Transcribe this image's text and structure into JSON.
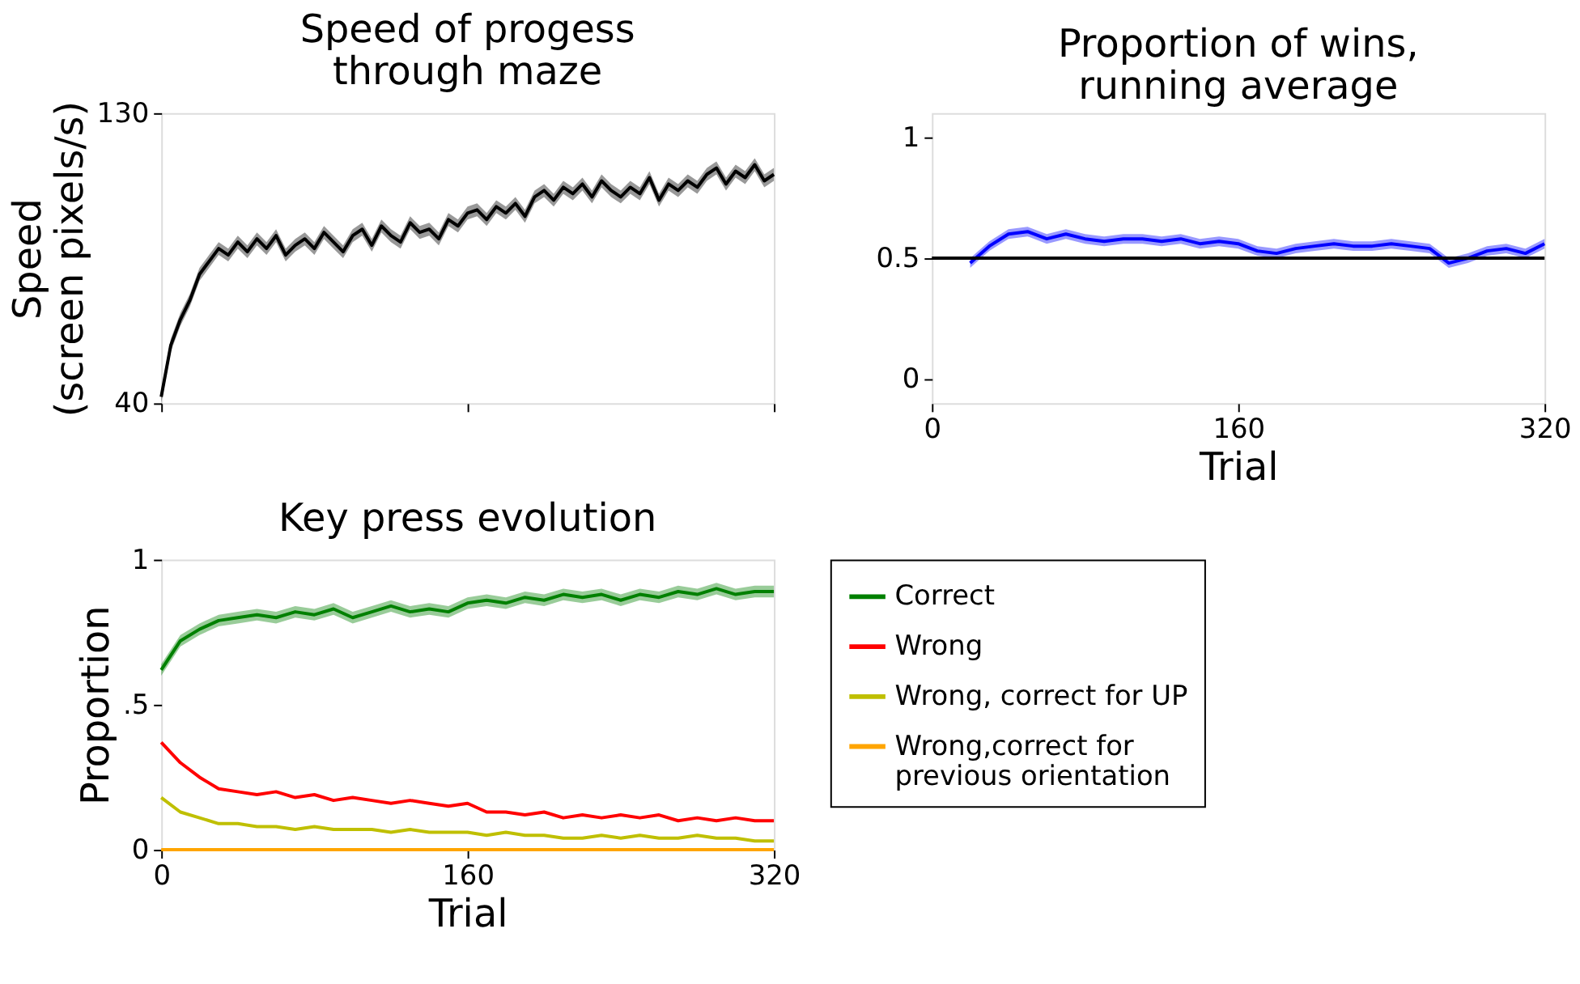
{
  "chart_data": [
    {
      "type": "line",
      "title": "Speed of progess\nthrough maze",
      "ylabel": "Speed\n(screen pixels/s)",
      "xlim": [
        0,
        320
      ],
      "ylim": [
        40,
        130
      ],
      "xticks": [
        {
          "value": 0,
          "label": null
        },
        {
          "value": 160,
          "label": null
        },
        {
          "value": 320,
          "label": null
        }
      ],
      "yticks": [
        40,
        130
      ],
      "tick_labels": "y",
      "grid": false,
      "legend": false,
      "x": [
        0,
        5,
        10,
        15,
        20,
        25,
        30,
        35,
        40,
        45,
        50,
        55,
        60,
        65,
        70,
        75,
        80,
        85,
        90,
        95,
        100,
        105,
        110,
        115,
        120,
        125,
        130,
        135,
        140,
        145,
        150,
        155,
        160,
        165,
        170,
        175,
        180,
        185,
        190,
        195,
        200,
        205,
        210,
        215,
        220,
        225,
        230,
        235,
        240,
        245,
        250,
        255,
        260,
        265,
        270,
        275,
        280,
        285,
        290,
        295,
        300,
        305,
        310,
        315,
        320
      ],
      "series": [
        {
          "color": "#000000",
          "values": [
            42,
            58,
            66,
            72,
            80,
            84,
            88,
            86,
            90,
            87,
            91,
            88,
            92,
            86,
            89,
            91,
            88,
            93,
            90,
            87,
            92,
            94,
            89,
            95,
            92,
            90,
            96,
            93,
            94,
            91,
            97,
            95,
            99,
            100,
            97,
            101,
            99,
            102,
            98,
            104,
            106,
            103,
            107,
            105,
            108,
            104,
            109,
            106,
            104,
            107,
            105,
            110,
            103,
            108,
            106,
            109,
            107,
            111,
            113,
            108,
            112,
            110,
            114,
            109,
            111
          ],
          "lower": [
            40,
            56,
            64,
            70,
            78,
            82,
            86,
            84,
            88,
            85,
            89,
            86,
            90,
            84,
            87,
            89,
            86,
            91,
            88,
            85,
            90,
            92,
            87,
            93,
            90,
            88,
            94,
            91,
            92,
            89,
            95,
            93,
            97,
            98,
            95,
            99,
            97,
            100,
            96,
            102,
            104,
            101,
            105,
            103,
            106,
            102,
            107,
            104,
            102,
            105,
            103,
            108,
            101,
            106,
            104,
            107,
            105,
            109,
            111,
            106,
            110,
            108,
            112,
            107,
            109
          ],
          "upper": [
            44,
            60,
            68,
            74,
            82,
            86,
            90,
            88,
            92,
            89,
            93,
            90,
            94,
            88,
            91,
            93,
            90,
            95,
            92,
            89,
            94,
            96,
            91,
            97,
            94,
            92,
            98,
            95,
            96,
            93,
            99,
            97,
            101,
            102,
            99,
            103,
            101,
            104,
            100,
            106,
            108,
            105,
            109,
            107,
            110,
            106,
            111,
            108,
            106,
            109,
            107,
            112,
            105,
            110,
            108,
            111,
            109,
            113,
            115,
            110,
            114,
            112,
            116,
            111,
            113
          ]
        }
      ]
    },
    {
      "type": "line",
      "title": "Proportion of wins,\nrunning average",
      "xlabel": "Trial",
      "xlim": [
        0,
        320
      ],
      "ylim": [
        -0.1,
        1.1
      ],
      "xticks": [
        0,
        160,
        320
      ],
      "yticks": [
        0,
        0.5,
        1
      ],
      "grid": false,
      "legend": false,
      "x": [
        20,
        30,
        40,
        50,
        60,
        70,
        80,
        90,
        100,
        110,
        120,
        130,
        140,
        150,
        160,
        170,
        180,
        190,
        200,
        210,
        220,
        230,
        240,
        250,
        260,
        270,
        280,
        290,
        300,
        310,
        320
      ],
      "series": [
        {
          "color": "#0000ff",
          "values": [
            0.48,
            0.55,
            0.6,
            0.61,
            0.58,
            0.6,
            0.58,
            0.57,
            0.58,
            0.58,
            0.57,
            0.58,
            0.56,
            0.57,
            0.56,
            0.53,
            0.52,
            0.54,
            0.55,
            0.56,
            0.55,
            0.55,
            0.56,
            0.55,
            0.54,
            0.48,
            0.5,
            0.53,
            0.54,
            0.52,
            0.56
          ],
          "lower": [
            0.46,
            0.53,
            0.58,
            0.59,
            0.56,
            0.58,
            0.56,
            0.55,
            0.56,
            0.56,
            0.55,
            0.56,
            0.54,
            0.55,
            0.54,
            0.51,
            0.5,
            0.52,
            0.53,
            0.54,
            0.53,
            0.53,
            0.54,
            0.53,
            0.52,
            0.46,
            0.48,
            0.51,
            0.52,
            0.5,
            0.54
          ],
          "upper": [
            0.5,
            0.57,
            0.62,
            0.63,
            0.6,
            0.62,
            0.6,
            0.59,
            0.6,
            0.6,
            0.59,
            0.6,
            0.58,
            0.59,
            0.58,
            0.55,
            0.54,
            0.56,
            0.57,
            0.58,
            0.57,
            0.57,
            0.58,
            0.57,
            0.56,
            0.5,
            0.52,
            0.55,
            0.56,
            0.54,
            0.58
          ]
        }
      ],
      "ref_lines": [
        {
          "axis": "y",
          "value": 0.5,
          "color": "#000000"
        }
      ]
    },
    {
      "type": "line",
      "title": "Key press evolution",
      "xlabel": "Trial",
      "ylabel": "Proportion",
      "xlim": [
        0,
        320
      ],
      "ylim": [
        0,
        1
      ],
      "xticks": [
        0,
        160,
        320
      ],
      "yticks": [
        0,
        {
          "value": 0.5,
          "label": ".5"
        },
        1
      ],
      "grid": false,
      "legend": "right",
      "x": [
        0,
        10,
        20,
        30,
        40,
        50,
        60,
        70,
        80,
        90,
        100,
        110,
        120,
        130,
        140,
        150,
        160,
        170,
        180,
        190,
        200,
        210,
        220,
        230,
        240,
        250,
        260,
        270,
        280,
        290,
        300,
        310,
        320
      ],
      "series": [
        {
          "name": "Correct",
          "color": "#008000",
          "values": [
            0.62,
            0.72,
            0.76,
            0.79,
            0.8,
            0.81,
            0.8,
            0.82,
            0.81,
            0.83,
            0.8,
            0.82,
            0.84,
            0.82,
            0.83,
            0.82,
            0.85,
            0.86,
            0.85,
            0.87,
            0.86,
            0.88,
            0.87,
            0.88,
            0.86,
            0.88,
            0.87,
            0.89,
            0.88,
            0.9,
            0.88,
            0.89,
            0.89
          ],
          "lower": [
            0.6,
            0.7,
            0.74,
            0.77,
            0.78,
            0.79,
            0.78,
            0.8,
            0.79,
            0.81,
            0.78,
            0.8,
            0.82,
            0.8,
            0.81,
            0.8,
            0.83,
            0.84,
            0.83,
            0.85,
            0.84,
            0.86,
            0.85,
            0.86,
            0.84,
            0.86,
            0.85,
            0.87,
            0.86,
            0.88,
            0.86,
            0.87,
            0.87
          ],
          "upper": [
            0.64,
            0.74,
            0.78,
            0.81,
            0.82,
            0.83,
            0.82,
            0.84,
            0.83,
            0.85,
            0.82,
            0.84,
            0.86,
            0.84,
            0.85,
            0.84,
            0.87,
            0.88,
            0.87,
            0.89,
            0.88,
            0.9,
            0.89,
            0.9,
            0.88,
            0.9,
            0.89,
            0.91,
            0.9,
            0.92,
            0.9,
            0.91,
            0.91
          ]
        },
        {
          "name": "Wrong",
          "color": "#ff0000",
          "values": [
            0.37,
            0.3,
            0.25,
            0.21,
            0.2,
            0.19,
            0.2,
            0.18,
            0.19,
            0.17,
            0.18,
            0.17,
            0.16,
            0.17,
            0.16,
            0.15,
            0.16,
            0.13,
            0.13,
            0.12,
            0.13,
            0.11,
            0.12,
            0.11,
            0.12,
            0.11,
            0.12,
            0.1,
            0.11,
            0.1,
            0.11,
            0.1,
            0.1
          ]
        },
        {
          "name": "Wrong, correct for UP",
          "color": "#bfbf00",
          "values": [
            0.18,
            0.13,
            0.11,
            0.09,
            0.09,
            0.08,
            0.08,
            0.07,
            0.08,
            0.07,
            0.07,
            0.07,
            0.06,
            0.07,
            0.06,
            0.06,
            0.06,
            0.05,
            0.06,
            0.05,
            0.05,
            0.04,
            0.04,
            0.05,
            0.04,
            0.05,
            0.04,
            0.04,
            0.05,
            0.04,
            0.04,
            0.03,
            0.03
          ]
        },
        {
          "name": "Wrong,correct for\n previous orientation",
          "color": "#ffa500",
          "values": [
            0,
            0,
            0,
            0,
            0,
            0,
            0,
            0,
            0,
            0,
            0,
            0,
            0,
            0,
            0,
            0,
            0,
            0,
            0,
            0,
            0,
            0,
            0,
            0,
            0,
            0,
            0,
            0,
            0,
            0,
            0,
            0,
            0
          ]
        }
      ]
    }
  ]
}
